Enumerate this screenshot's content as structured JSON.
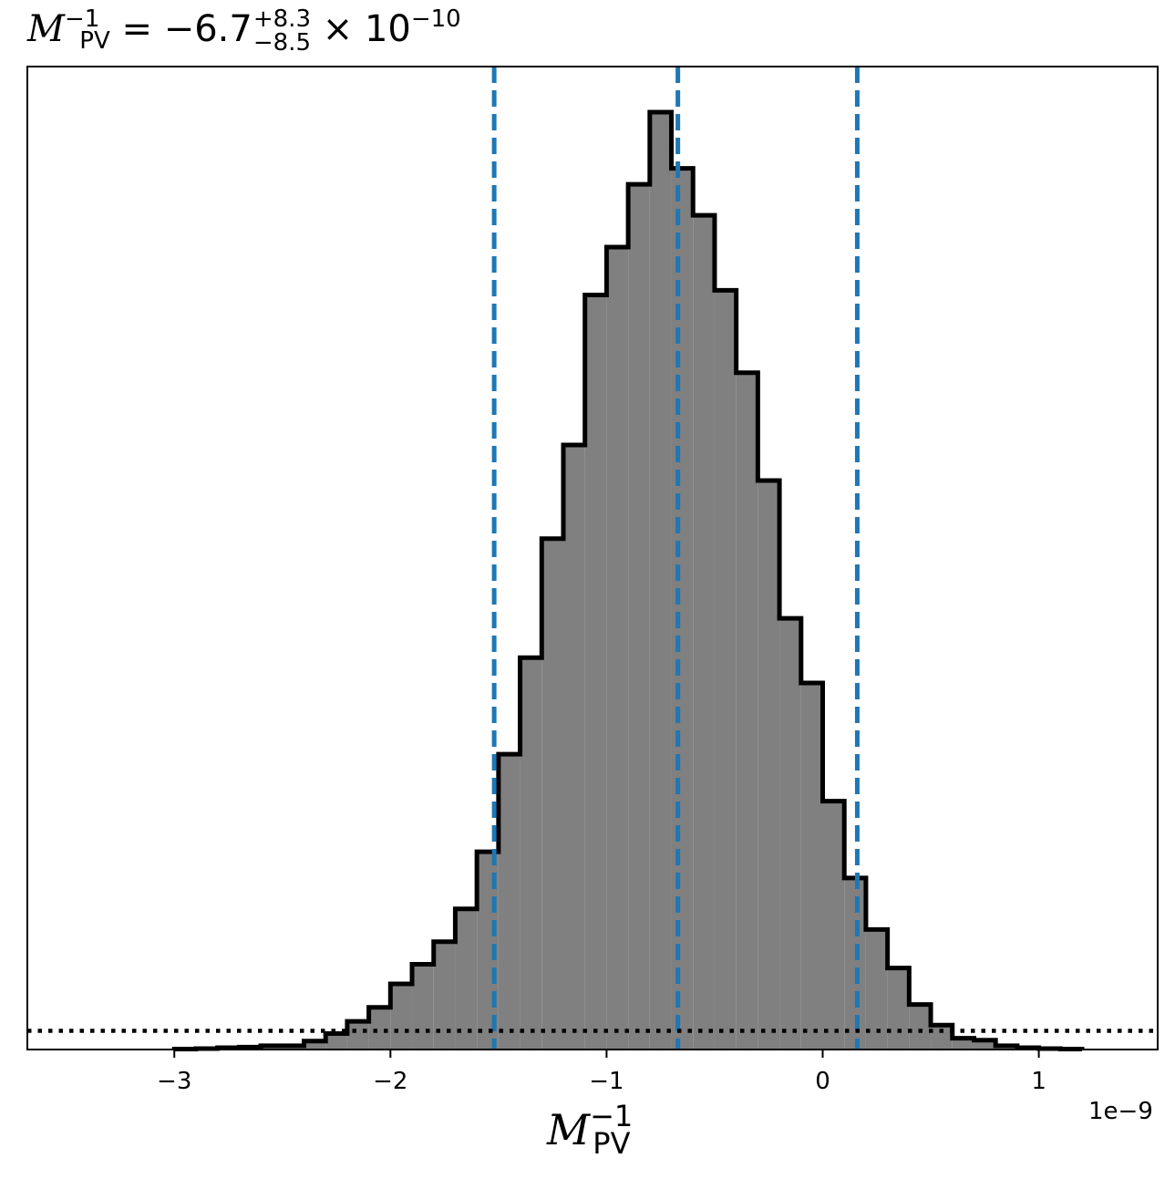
{
  "title": {
    "symbol": "M",
    "sup": "−1",
    "sub": "PV",
    "equals": " = ",
    "value": "−6.7",
    "plus": "+8.3",
    "minus": "−8.5",
    "times": " × 10",
    "exponent": "−10"
  },
  "xlabel": {
    "symbol": "M",
    "sup": "−1",
    "sub": "PV"
  },
  "offset_text": "1e−9",
  "chart_data": {
    "type": "histogram",
    "xlim": [
      -3.68,
      1.55
    ],
    "ylim": [
      0,
      1.0
    ],
    "x_scale_note": "1e−9",
    "xticks": [
      -3,
      -2,
      -1,
      0,
      1
    ],
    "xtick_labels": [
      "−3",
      "−2",
      "−1",
      "0",
      "1"
    ],
    "bin_edges": [
      -3.0,
      -2.9,
      -2.8,
      -2.7,
      -2.6,
      -2.5,
      -2.4,
      -2.3,
      -2.2,
      -2.1,
      -2.0,
      -1.9,
      -1.8,
      -1.7,
      -1.6,
      -1.5,
      -1.4,
      -1.3,
      -1.2,
      -1.1,
      -1.0,
      -0.9,
      -0.8,
      -0.7,
      -0.6,
      -0.5,
      -0.4,
      -0.3,
      -0.2,
      -0.1,
      0.0,
      0.1,
      0.2,
      0.3,
      0.4,
      0.5,
      0.6,
      0.7,
      0.8,
      0.9,
      1.0,
      1.1,
      1.2
    ],
    "counts": [
      0.0005,
      0.001,
      0.002,
      0.0025,
      0.004,
      0.004,
      0.009,
      0.017,
      0.03,
      0.045,
      0.07,
      0.091,
      0.115,
      0.15,
      0.211,
      0.315,
      0.418,
      0.545,
      0.645,
      0.805,
      0.856,
      0.923,
      1.0,
      0.94,
      0.89,
      0.81,
      0.722,
      0.607,
      0.46,
      0.391,
      0.265,
      0.183,
      0.128,
      0.087,
      0.048,
      0.026,
      0.012,
      0.01,
      0.004,
      0.002,
      0.001,
      0.0005
    ],
    "quantile_lines": [
      -1.52,
      -0.67,
      0.16
    ],
    "hline": 0.02,
    "fill_color": "#808080",
    "edge_color": "#000000",
    "quantile_color": "#1f77b4"
  }
}
